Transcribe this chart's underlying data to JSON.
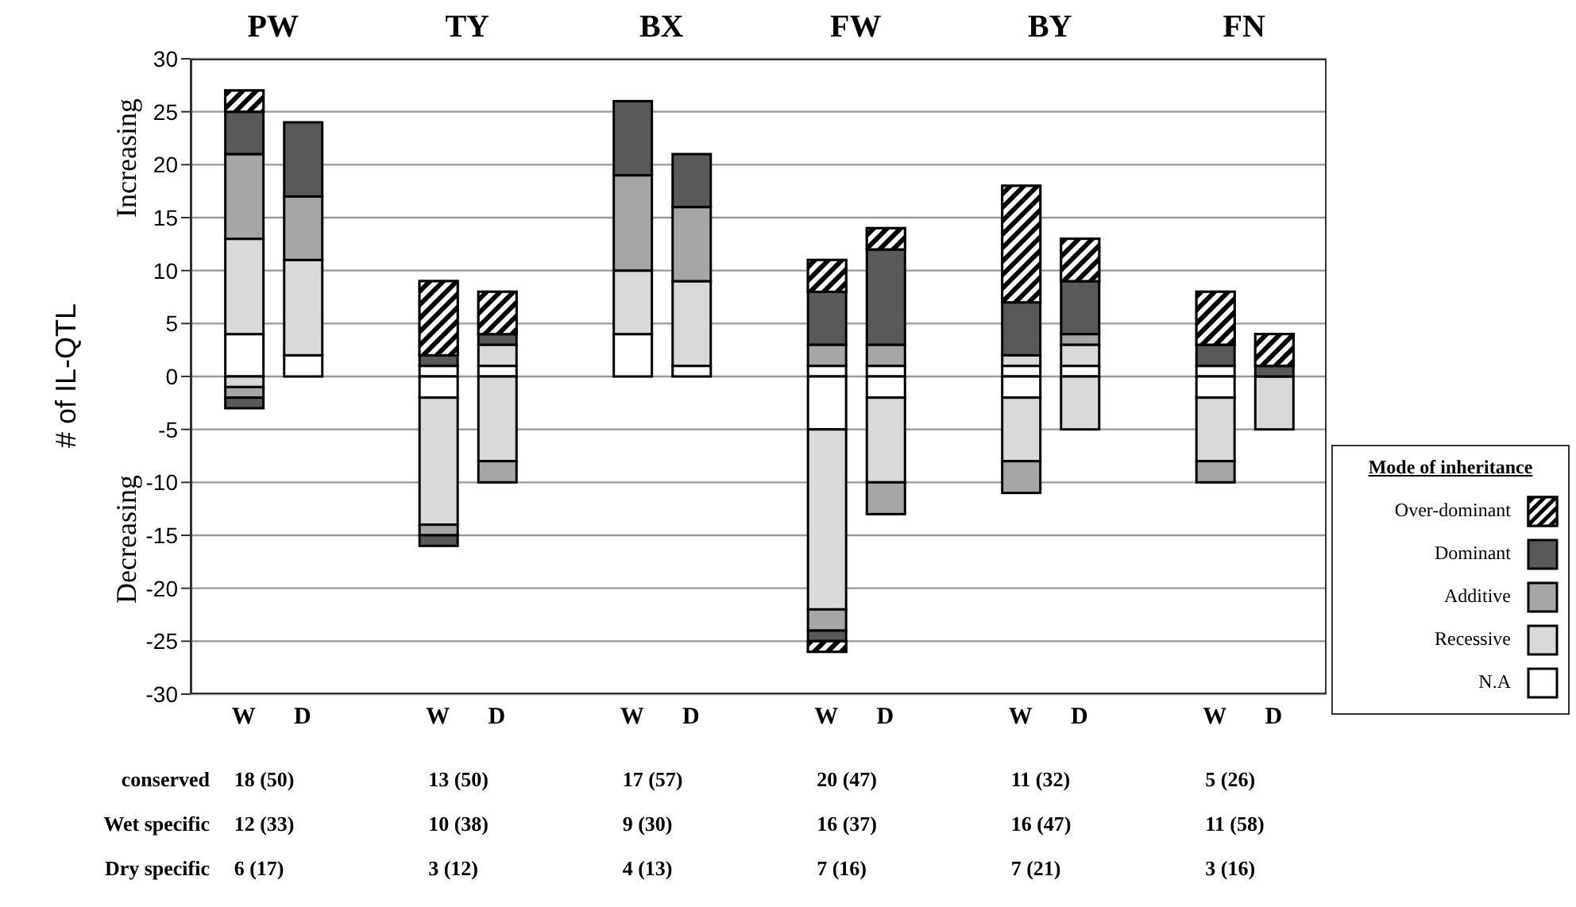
{
  "chart_data": {
    "type": "bar",
    "stacked": true,
    "ylabel": "# of IL-QTL",
    "legend_title": "Mode of inheritance",
    "legend": "right",
    "grid": "y",
    "categories": [
      "W",
      "D",
      "W",
      "D",
      "W",
      "D",
      "W",
      "D",
      "W",
      "D",
      "W",
      "D"
    ],
    "ylim": [
      -30,
      30
    ],
    "yticks": [
      -30,
      -25,
      -20,
      -15,
      -10,
      -5,
      0,
      5,
      10,
      15,
      20,
      25,
      30
    ],
    "series": [
      {
        "name": "N.A",
        "color": "#ffffff",
        "values": [
          4,
          2,
          1,
          1,
          4,
          1,
          1,
          1,
          1,
          1,
          1,
          null
        ]
      },
      {
        "color": "#ffffff",
        "values": [
          null,
          null,
          -2,
          null,
          null,
          null,
          -5,
          -2,
          -2,
          null,
          -2,
          null
        ]
      },
      {
        "name": "Recessive",
        "color": "#d9d9d9",
        "values": [
          9,
          9,
          null,
          2,
          6,
          8,
          null,
          null,
          1,
          2,
          null,
          null
        ]
      },
      {
        "color": "#d9d9d9",
        "values": [
          -1,
          null,
          -12,
          -8,
          null,
          null,
          -17,
          -8,
          -6,
          -5,
          -6,
          -5
        ]
      },
      {
        "name": "Additive",
        "color": "#a6a6a6",
        "values": [
          8,
          6,
          null,
          null,
          9,
          7,
          2,
          2,
          null,
          1,
          null,
          null
        ]
      },
      {
        "color": "#a6a6a6",
        "values": [
          -1,
          null,
          -1,
          -2,
          null,
          null,
          -2,
          -3,
          -3,
          null,
          -2,
          null
        ]
      },
      {
        "name": "Dominant",
        "color": "#595959",
        "values": [
          4,
          7,
          1,
          1,
          7,
          5,
          5,
          9,
          5,
          5,
          2,
          1
        ]
      },
      {
        "color": "#595959",
        "values": [
          -1,
          null,
          -1,
          null,
          null,
          null,
          -1,
          null,
          null,
          null,
          null,
          null
        ]
      },
      {
        "name": "Over-dominant",
        "color": "#000000",
        "values": [
          2,
          null,
          7,
          4,
          null,
          null,
          3,
          2,
          11,
          4,
          5,
          3
        ]
      },
      {
        "color": "#000000",
        "values": [
          null,
          null,
          null,
          null,
          null,
          null,
          -1,
          null,
          null,
          null,
          null,
          null
        ]
      }
    ],
    "annotations": [
      "PW",
      "TY",
      "BX",
      "FW",
      "BY",
      "FN",
      "Increasing",
      "Decreasing",
      "conserved",
      "18 (50)",
      "13 (50)",
      "17 (57)",
      "20 (47)",
      "11 (32)",
      "5 (26)",
      "Wet specific",
      "12 (33)",
      "10 (38)",
      "9 (30)",
      "16 (37)",
      "16 (47)",
      "11 (58)",
      "Dry specific",
      "6 (17)",
      "3 (12)",
      "4 (13)",
      "7 (16)",
      "7 (21)",
      "3 (16)"
    ]
  }
}
